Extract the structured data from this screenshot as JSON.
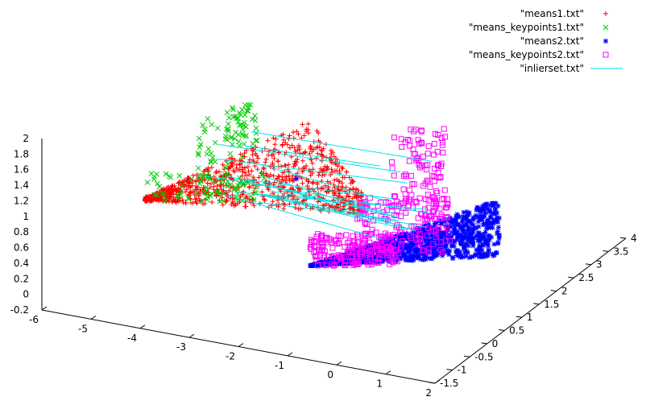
{
  "chart_data": {
    "type": "scatter",
    "title": "",
    "legend_position": "top-right",
    "axes": {
      "x": {
        "ticks": [
          "-6",
          "-5",
          "-4",
          "-3",
          "-2",
          "-1",
          "0",
          "1",
          "2"
        ],
        "range": [
          -6,
          2
        ]
      },
      "y": {
        "ticks": [
          "-1.5",
          "-1",
          "-0.5",
          "0",
          "0.5",
          "1",
          "1.5",
          "2",
          "2.5",
          "3",
          "3.5",
          "4"
        ],
        "range": [
          -1.5,
          4
        ]
      },
      "z": {
        "ticks": [
          "-0.2",
          "0",
          "0.2",
          "0.4",
          "0.6",
          "0.8",
          "1",
          "1.2",
          "1.4",
          "1.6",
          "1.8",
          "2"
        ],
        "range": [
          -0.2,
          2
        ]
      }
    },
    "series": [
      {
        "name": "\"means1.txt\"",
        "marker": "plus",
        "color": "#ff0000"
      },
      {
        "name": "\"means_keypoints1.txt\"",
        "marker": "cross",
        "color": "#00cc00"
      },
      {
        "name": "\"means2.txt\"",
        "marker": "star",
        "color": "#0000ff"
      },
      {
        "name": "\"means_keypoints2.txt\"",
        "marker": "square",
        "color": "#ff00ff"
      },
      {
        "name": "\"inlierset.txt\"",
        "marker": "line",
        "color": "#00e5e5"
      }
    ]
  }
}
